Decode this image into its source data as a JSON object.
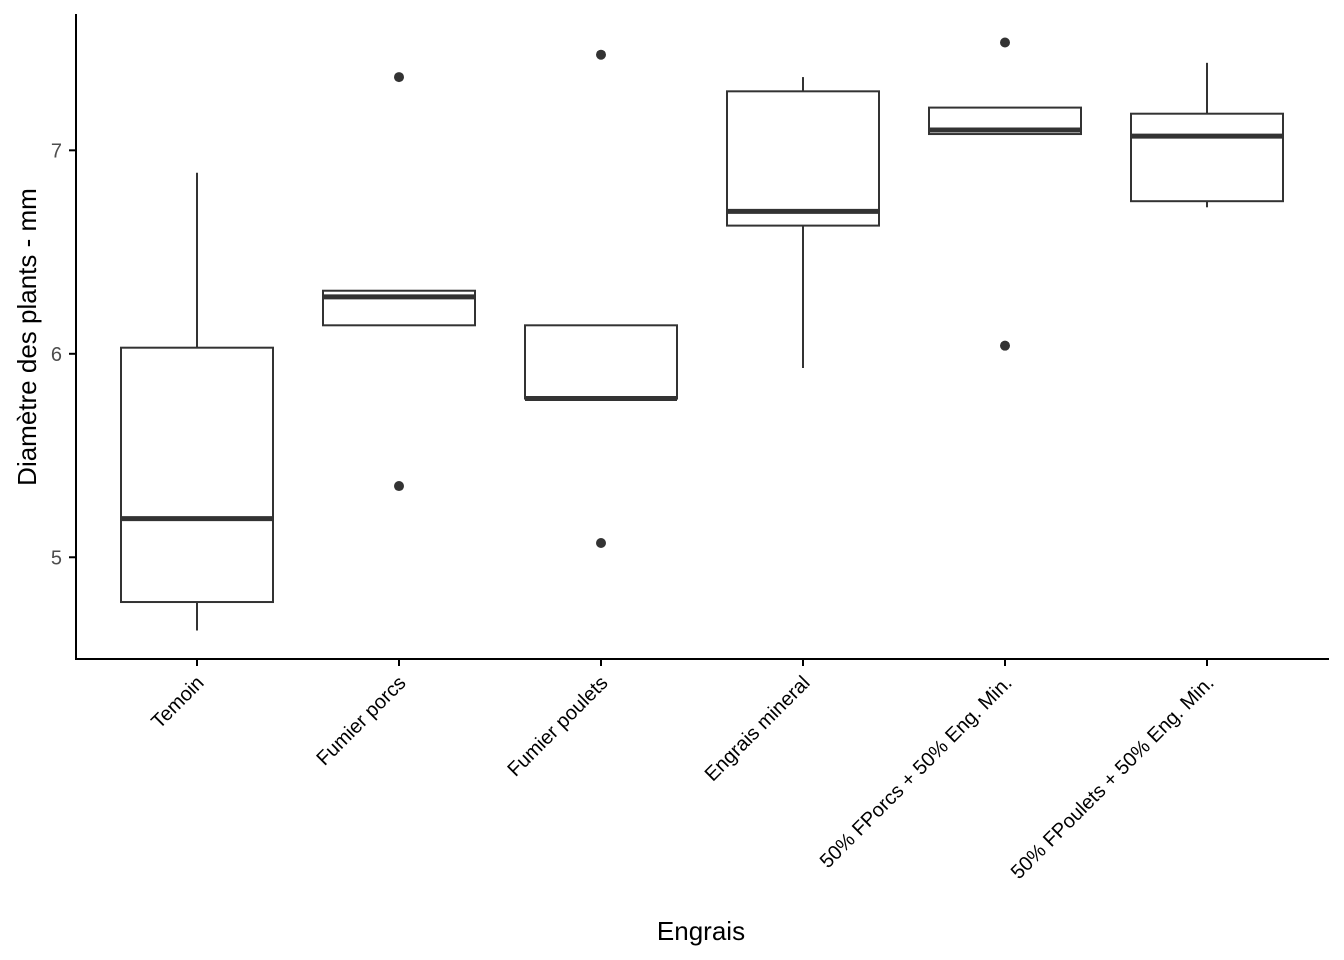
{
  "chart_data": {
    "type": "boxplot",
    "title": "",
    "xlabel": "Engrais",
    "ylabel": "Diamètre des plants - mm",
    "ylim": [
      4.5,
      7.67
    ],
    "yticks": [
      5,
      6,
      7
    ],
    "grid": false,
    "colors": {
      "line": "#333333",
      "fill": "#ffffff",
      "axis": "#000000"
    },
    "categories": [
      "Temoin",
      "Fumier porcs",
      "Fumier poulets",
      "Engrais mineral",
      "50% FPorcs + 50% Eng. Min.",
      "50% FPoulets + 50% Eng. Min."
    ],
    "boxes": [
      {
        "whisker_low": 4.64,
        "q1": 4.78,
        "median": 5.19,
        "q3": 6.03,
        "whisker_high": 6.89,
        "outliers": []
      },
      {
        "whisker_low": 6.14,
        "q1": 6.14,
        "median": 6.28,
        "q3": 6.31,
        "whisker_high": 6.31,
        "outliers": [
          7.36,
          5.35
        ]
      },
      {
        "whisker_low": 5.78,
        "q1": 5.78,
        "median": 5.78,
        "q3": 6.14,
        "whisker_high": 6.14,
        "outliers": [
          7.47,
          5.07
        ]
      },
      {
        "whisker_low": 5.93,
        "q1": 6.63,
        "median": 6.7,
        "q3": 7.29,
        "whisker_high": 7.36,
        "outliers": []
      },
      {
        "whisker_low": 7.08,
        "q1": 7.08,
        "median": 7.1,
        "q3": 7.21,
        "whisker_high": 7.21,
        "outliers": [
          7.53,
          6.04
        ]
      },
      {
        "whisker_low": 6.72,
        "q1": 6.75,
        "median": 7.07,
        "q3": 7.18,
        "whisker_high": 7.43,
        "outliers": []
      }
    ]
  }
}
